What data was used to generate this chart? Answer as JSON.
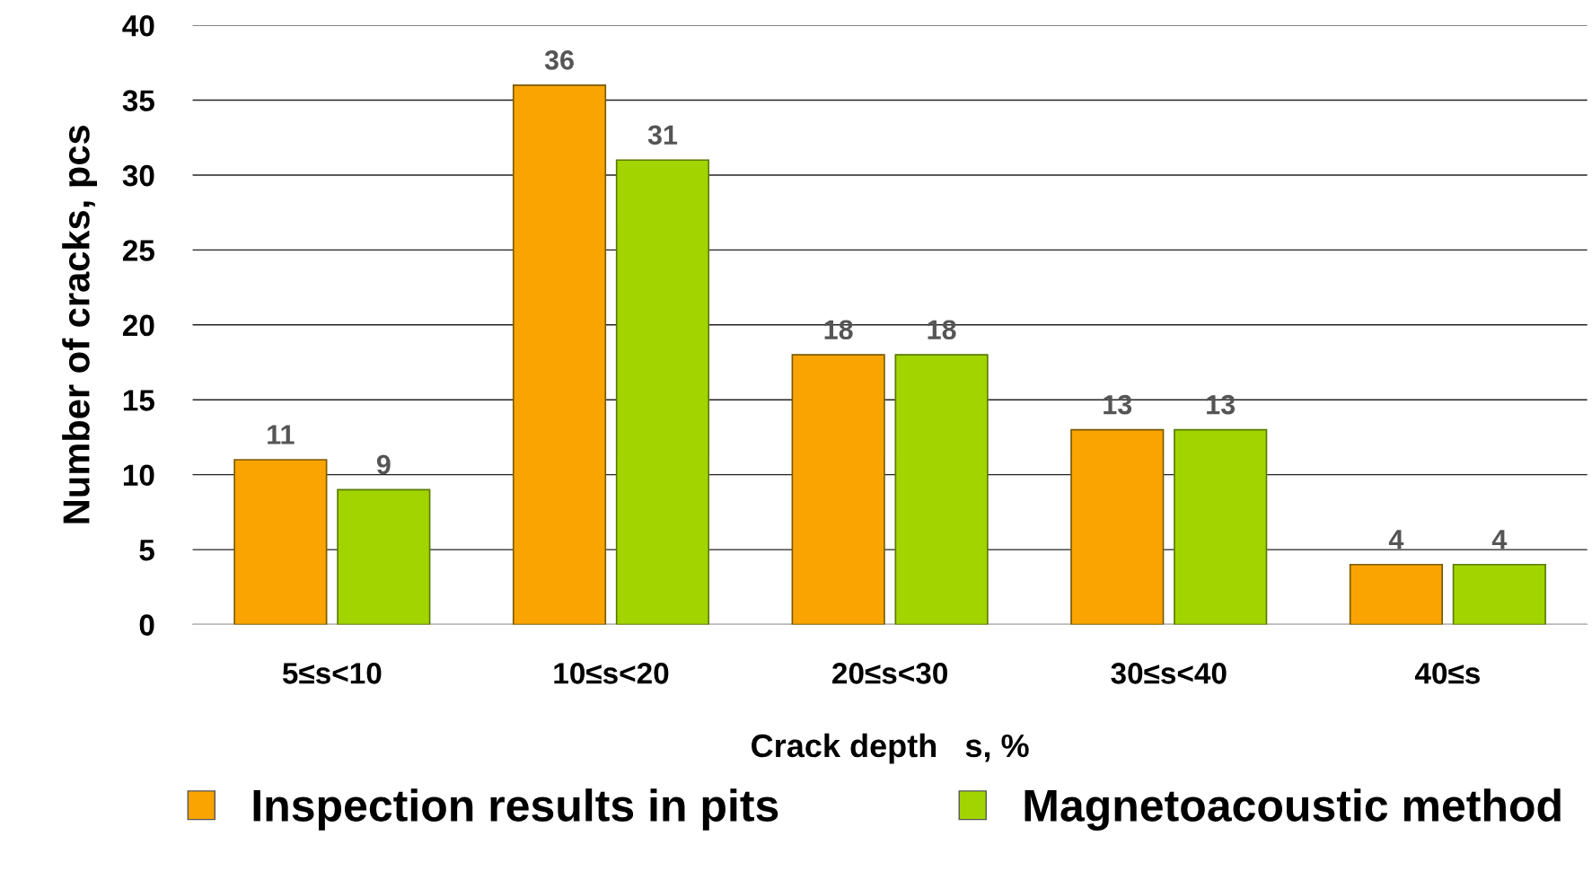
{
  "chart_data": {
    "type": "bar",
    "xlabel": "Crack depth   s, %",
    "ylabel": "Number of cracks, pcs",
    "categories": [
      "5≤s<10",
      "10≤s<20",
      "20≤s<30",
      "30≤s<40",
      "40≤s"
    ],
    "series": [
      {
        "name": "Inspection results in pits",
        "color": "#f9a400",
        "values": [
          11,
          36,
          18,
          13,
          4
        ]
      },
      {
        "name": "Magnetoacoustic method",
        "color": "#a2d400",
        "values": [
          9,
          31,
          18,
          13,
          4
        ]
      }
    ],
    "ylim": [
      0,
      40
    ],
    "yticks": [
      0,
      5,
      10,
      15,
      20,
      25,
      30,
      35,
      40
    ],
    "grid": "y",
    "legend": "bottom",
    "data_labels": true
  }
}
